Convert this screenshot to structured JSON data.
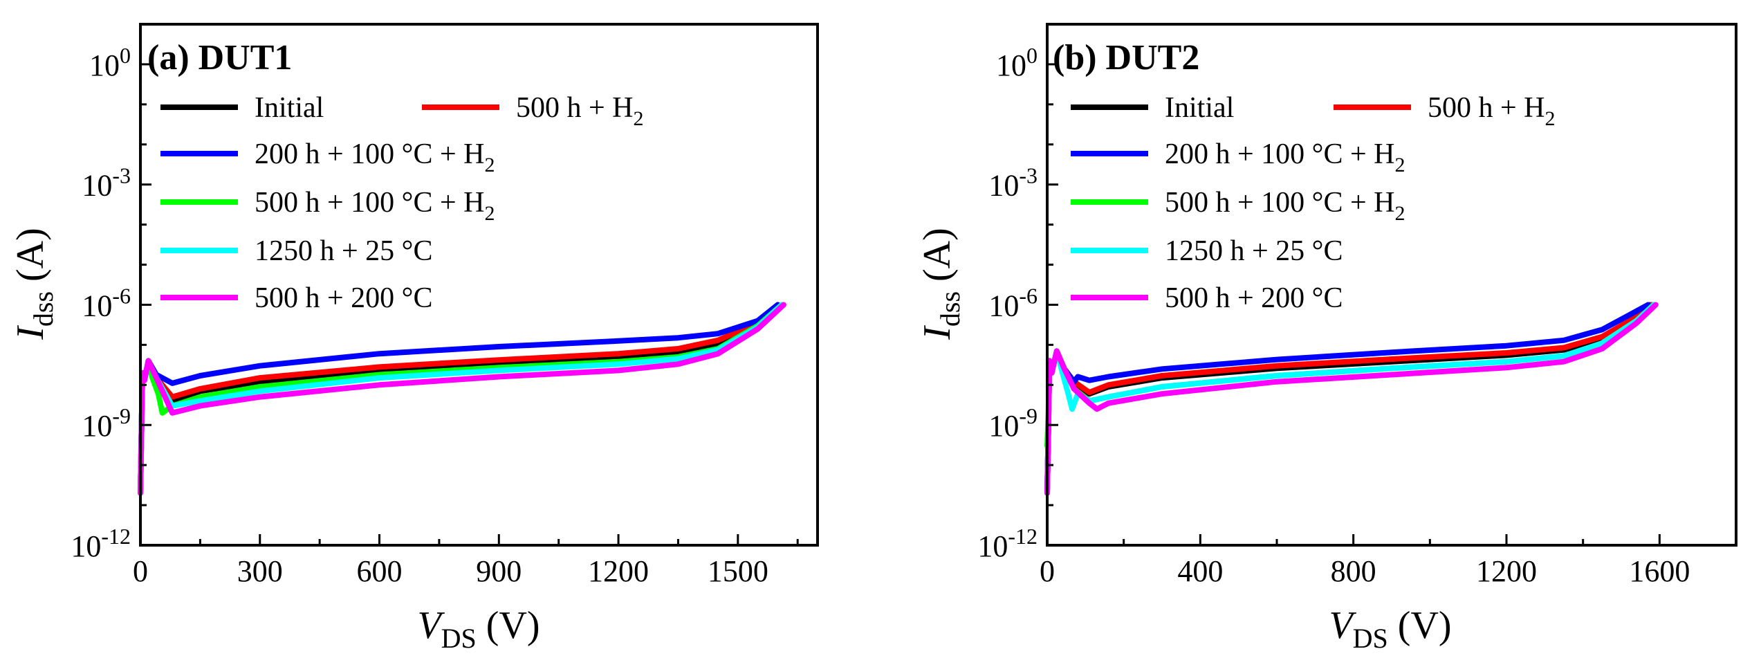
{
  "chart_data": [
    {
      "type": "line",
      "title": "(a) DUT1",
      "xlabel": {
        "main": "V",
        "sub": "DS",
        "unit": " (V)"
      },
      "ylabel": {
        "main": "I",
        "sub": "dss",
        "unit": " (A)"
      },
      "xlim": [
        0,
        1700
      ],
      "ylim_log10": [
        -12,
        1
      ],
      "x_ticks": [
        0,
        300,
        600,
        900,
        1200,
        1500
      ],
      "x_tick_labels": [
        "0",
        "300",
        "600",
        "900",
        "1200",
        "1500"
      ],
      "y_tick_exponents": [
        0,
        -3,
        -6,
        -9,
        -12
      ],
      "y_tick_labels": [
        {
          "base": "10",
          "exp": "0"
        },
        {
          "base": "10",
          "exp": "-3"
        },
        {
          "base": "10",
          "exp": "-6"
        },
        {
          "base": "10",
          "exp": "-9"
        },
        {
          "base": "10",
          "exp": "-12"
        }
      ],
      "series": [
        {
          "name": "Initial",
          "color": "#000000",
          "x": [
            0,
            3,
            5,
            10,
            20,
            40,
            80,
            150,
            300,
            600,
            900,
            1200,
            1350,
            1450,
            1550,
            1600
          ],
          "y": [
            2e-11,
            1e-09,
            2e-08,
            1.3e-08,
            4e-08,
            1.5e-08,
            4e-09,
            7e-09,
            1.2e-08,
            2.3e-08,
            3.5e-08,
            5e-08,
            6.5e-08,
            1e-07,
            3e-07,
            1e-06
          ]
        },
        {
          "name": "500 h + H2",
          "color": "#ff0000",
          "x": [
            0,
            3,
            5,
            10,
            20,
            40,
            80,
            150,
            300,
            600,
            900,
            1200,
            1350,
            1450,
            1550,
            1610
          ],
          "y": [
            2e-11,
            1e-09,
            2e-08,
            1.3e-08,
            4e-08,
            1.5e-08,
            5e-09,
            8e-09,
            1.5e-08,
            2.8e-08,
            4.2e-08,
            6e-08,
            8e-08,
            1.3e-07,
            3.5e-07,
            1e-06
          ]
        },
        {
          "name": "200 h + 100 °C + H2",
          "color": "#0000ff",
          "x": [
            0,
            3,
            5,
            10,
            20,
            40,
            80,
            150,
            300,
            600,
            900,
            1200,
            1350,
            1450,
            1550,
            1600
          ],
          "y": [
            2e-11,
            1e-09,
            2e-08,
            1.3e-08,
            4e-08,
            1.8e-08,
            1.1e-08,
            1.7e-08,
            3e-08,
            6e-08,
            9e-08,
            1.25e-07,
            1.5e-07,
            1.9e-07,
            4e-07,
            1e-06
          ]
        },
        {
          "name": "500 h + 100 °C + H2",
          "color": "#00ff00",
          "x": [
            0,
            3,
            5,
            10,
            20,
            30,
            45,
            55,
            80,
            150,
            300,
            600,
            900,
            1200,
            1350,
            1450,
            1550,
            1610
          ],
          "y": [
            2e-11,
            1e-09,
            2e-08,
            1.3e-08,
            4e-08,
            1.5e-08,
            6e-09,
            2e-09,
            3e-09,
            5e-09,
            9e-09,
            1.8e-08,
            2.7e-08,
            3.8e-08,
            5e-08,
            8e-08,
            3e-07,
            1e-06
          ]
        },
        {
          "name": "1250 h + 25 °C",
          "color": "#00ffff",
          "x": [
            0,
            3,
            5,
            10,
            20,
            40,
            80,
            150,
            300,
            600,
            900,
            1200,
            1350,
            1450,
            1550,
            1610
          ],
          "y": [
            2e-11,
            1e-09,
            2e-08,
            1.3e-08,
            4e-08,
            1.5e-08,
            3e-09,
            4e-09,
            7e-09,
            1.5e-08,
            2.3e-08,
            3.3e-08,
            4.5e-08,
            7.5e-08,
            2.8e-07,
            1e-06
          ]
        },
        {
          "name": "500 h + 200 °C",
          "color": "#ff00ff",
          "x": [
            0,
            3,
            5,
            10,
            20,
            40,
            80,
            150,
            300,
            600,
            900,
            1200,
            1350,
            1450,
            1550,
            1615
          ],
          "y": [
            2e-11,
            1e-09,
            2e-08,
            1.3e-08,
            4e-08,
            1.5e-08,
            2e-09,
            3e-09,
            5e-09,
            1e-08,
            1.6e-08,
            2.3e-08,
            3.3e-08,
            6e-08,
            2.5e-07,
            1e-06
          ]
        }
      ]
    },
    {
      "type": "line",
      "title": "(b) DUT2",
      "xlabel": {
        "main": "V",
        "sub": "DS",
        "unit": " (V)"
      },
      "ylabel": {
        "main": "I",
        "sub": "dss",
        "unit": " (A)"
      },
      "xlim": [
        0,
        1800
      ],
      "ylim_log10": [
        -12,
        1
      ],
      "x_ticks": [
        0,
        400,
        800,
        1200,
        1600
      ],
      "x_tick_labels": [
        "0",
        "400",
        "800",
        "1200",
        "1600"
      ],
      "y_tick_exponents": [
        0,
        -3,
        -6,
        -9,
        -12
      ],
      "y_tick_labels": [
        {
          "base": "10",
          "exp": "0"
        },
        {
          "base": "10",
          "exp": "-3"
        },
        {
          "base": "10",
          "exp": "-6"
        },
        {
          "base": "10",
          "exp": "-9"
        },
        {
          "base": "10",
          "exp": "-12"
        }
      ],
      "series": [
        {
          "name": "Initial",
          "color": "#000000",
          "x": [
            0,
            3,
            6,
            12,
            25,
            45,
            70,
            110,
            160,
            300,
            600,
            900,
            1200,
            1350,
            1450,
            1540,
            1575
          ],
          "y": [
            2e-11,
            8e-10,
            4e-08,
            2e-08,
            7e-08,
            2.5e-08,
            1.2e-08,
            6e-09,
            9e-09,
            1.5e-08,
            2.6e-08,
            3.8e-08,
            5.5e-08,
            7.5e-08,
            1.4e-07,
            4.5e-07,
            1e-06
          ]
        },
        {
          "name": "500 h + H2",
          "color": "#ff0000",
          "x": [
            0,
            3,
            6,
            12,
            25,
            45,
            70,
            110,
            160,
            300,
            600,
            900,
            1200,
            1350,
            1450,
            1540,
            1580
          ],
          "y": [
            2e-11,
            8e-10,
            4e-08,
            2e-08,
            7e-08,
            2.5e-08,
            1.2e-08,
            6.5e-09,
            1e-08,
            1.7e-08,
            3e-08,
            4.4e-08,
            6.3e-08,
            8.5e-08,
            1.6e-07,
            5e-07,
            1e-06
          ]
        },
        {
          "name": "200 h + 100 °C + H2",
          "color": "#0000ff",
          "x": [
            0,
            3,
            6,
            12,
            25,
            45,
            70,
            80,
            110,
            160,
            300,
            600,
            900,
            1200,
            1350,
            1450,
            1520,
            1570
          ],
          "y": [
            2e-11,
            8e-10,
            4e-08,
            2e-08,
            7e-08,
            2.5e-08,
            1.2e-08,
            1.6e-08,
            1.3e-08,
            1.6e-08,
            2.5e-08,
            4.3e-08,
            6.5e-08,
            9.5e-08,
            1.3e-07,
            2.4e-07,
            5.5e-07,
            1e-06
          ]
        },
        {
          "name": "500 h + 100 °C + H2",
          "color": "#00ff00",
          "x": [
            0,
            3,
            6,
            12,
            25,
            45,
            70,
            110,
            160,
            300,
            600,
            900,
            1200,
            1350,
            1450,
            1540,
            1585
          ],
          "y": [
            3e-10,
            2e-09,
            4e-08,
            2e-08,
            7e-08,
            2.5e-08,
            8e-09,
            4e-09,
            5e-09,
            9e-09,
            1.7e-08,
            2.6e-08,
            3.8e-08,
            5.3e-08,
            1.1e-07,
            4e-07,
            1e-06
          ]
        },
        {
          "name": "1250 h + 25 °C",
          "color": "#00ffff",
          "x": [
            0,
            3,
            6,
            12,
            25,
            40,
            55,
            65,
            80,
            110,
            160,
            300,
            600,
            900,
            1200,
            1350,
            1450,
            1540,
            1585
          ],
          "y": [
            2e-11,
            8e-10,
            4e-08,
            2e-08,
            7e-08,
            2e-08,
            6e-09,
            2.5e-09,
            6e-09,
            4e-09,
            5e-09,
            9e-09,
            1.7e-08,
            2.6e-08,
            3.8e-08,
            5.3e-08,
            1.1e-07,
            4e-07,
            1e-06
          ]
        },
        {
          "name": "500 h + 200 °C",
          "color": "#ff00ff",
          "x": [
            0,
            3,
            6,
            12,
            25,
            45,
            70,
            110,
            130,
            160,
            300,
            600,
            900,
            1200,
            1350,
            1450,
            1540,
            1590
          ],
          "y": [
            2e-11,
            8e-10,
            4e-08,
            2e-08,
            7e-08,
            2.5e-08,
            8e-09,
            3.5e-09,
            2.5e-09,
            3.5e-09,
            6e-09,
            1.2e-08,
            1.8e-08,
            2.7e-08,
            3.8e-08,
            8e-08,
            3.5e-07,
            1e-06
          ]
        }
      ]
    }
  ],
  "legend": [
    {
      "text": "Initial",
      "sub": "",
      "color": "#000000"
    },
    {
      "text": "500 h + H",
      "sub": "2",
      "color": "#ff0000"
    },
    {
      "text": "200 h + 100 °C + H",
      "sub": "2",
      "color": "#0000ff"
    },
    {
      "text": "500 h + 100 °C + H",
      "sub": "2",
      "color": "#00ff00"
    },
    {
      "text": "1250 h + 25 °C",
      "sub": "",
      "color": "#00ffff"
    },
    {
      "text": "500 h + 200 °C",
      "sub": "",
      "color": "#ff00ff"
    }
  ]
}
